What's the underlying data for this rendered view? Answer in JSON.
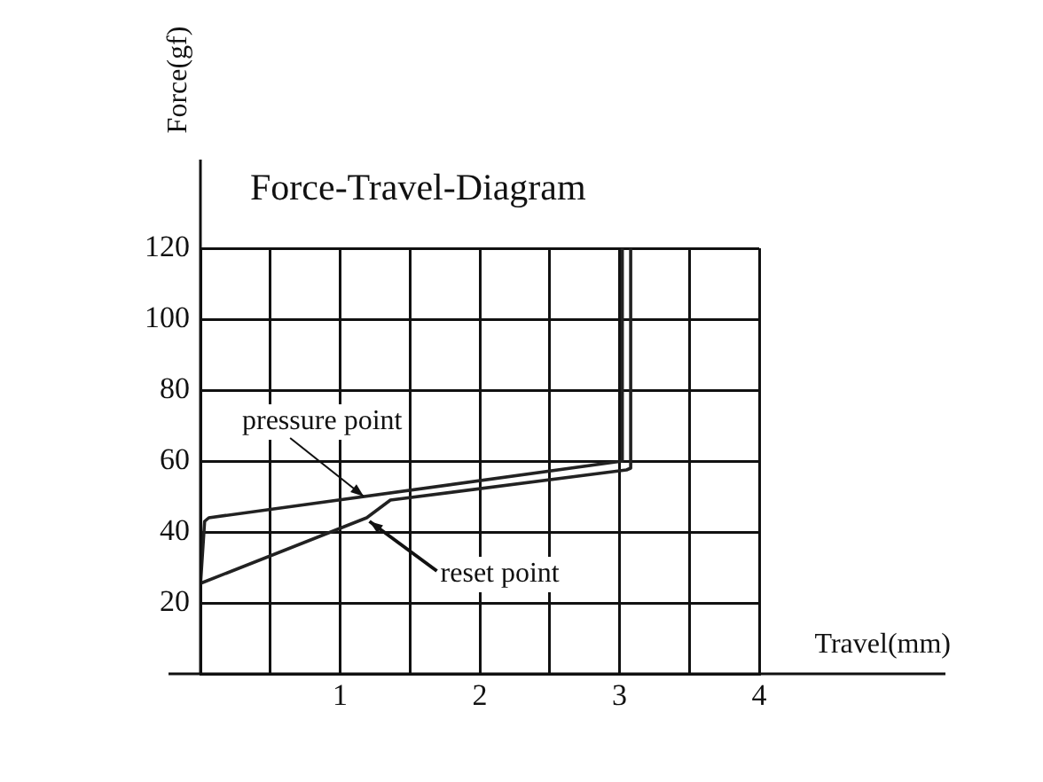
{
  "chart_data": {
    "type": "line",
    "title": "Force-Travel-Diagram",
    "xlabel": "Travel(mm)",
    "ylabel": "Force(gf)",
    "series": [
      {
        "color": "#222222",
        "x": [
          0,
          0.03,
          0.06,
          3.02,
          3.02
        ],
        "values": [
          25,
          43,
          44,
          60,
          120
        ]
      },
      {
        "color": "#222222",
        "x": [
          3.08,
          3.08,
          3.05,
          1.36,
          1.19,
          0
        ],
        "values": [
          120,
          58,
          57.5,
          49,
          44,
          25.5
        ]
      }
    ],
    "xlim": [
      0,
      4
    ],
    "xticks": [
      {
        "value": 0,
        "label": null
      },
      {
        "value": 0.5,
        "label": null
      },
      1,
      {
        "value": 1.5,
        "label": null
      },
      2,
      {
        "value": 2.5,
        "label": null
      },
      3,
      {
        "value": 3.5,
        "label": null
      },
      4
    ],
    "ylim": [
      0,
      120
    ],
    "yticks": [
      {
        "value": 0,
        "label": null
      },
      20,
      40,
      60,
      80,
      100,
      120
    ],
    "annotations": [
      {
        "text": "pressure point",
        "x": 1.17,
        "y": 50
      },
      {
        "text": "reset point",
        "x": 1.21,
        "y": 43
      }
    ],
    "grid": true,
    "legend": false,
    "marker": "none",
    "line_style": "solid"
  }
}
